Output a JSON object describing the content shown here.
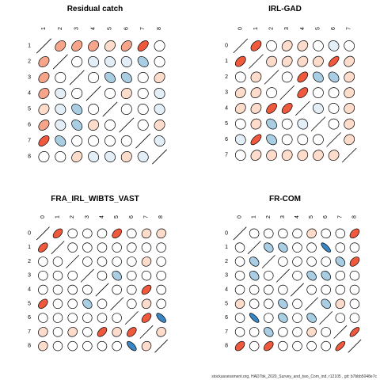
{
  "footer": "stockassessment.org, HAD7bk_2020_Survey_and_two_Com_ind, r12105 , git: b7bbb5048e7c",
  "colors": {
    "positive_strong": "#ef5a3e",
    "positive_medium": "#f6a58b",
    "positive_light": "#fddccb",
    "negative_strong": "#3a86c4",
    "negative_medium": "#a9cde3",
    "negative_light": "#e4eef7",
    "neutral": "#ffffff",
    "outline": "#000000"
  },
  "chart_data": [
    {
      "type": "heatmap",
      "title": "Residual catch",
      "row_labels": [
        "1",
        "2",
        "3",
        "4",
        "5",
        "6",
        "7",
        "8"
      ],
      "col_labels": [
        "1",
        "2",
        "3",
        "4",
        "5",
        "6",
        "7",
        "8"
      ],
      "values": [
        [
          1,
          0.3,
          0.3,
          0.25,
          0.2,
          0.35,
          0.5,
          0.05
        ],
        [
          0.3,
          1,
          0.05,
          -0.1,
          -0.1,
          -0.1,
          -0.3,
          -0.05
        ],
        [
          0.3,
          0.05,
          1,
          0.05,
          -0.3,
          -0.3,
          0,
          0.2
        ],
        [
          0.25,
          -0.1,
          0.05,
          1,
          0,
          0.1,
          0,
          -0.1
        ],
        [
          0.2,
          -0.1,
          -0.3,
          0,
          1,
          0.05,
          -0.05,
          -0.1
        ],
        [
          0.35,
          -0.1,
          -0.3,
          0.1,
          0.05,
          1,
          0,
          0.1
        ],
        [
          0.5,
          -0.3,
          0,
          0,
          -0.05,
          0,
          1,
          -0.1
        ],
        [
          0.05,
          -0.05,
          0.2,
          -0.1,
          -0.1,
          0.1,
          -0.1,
          1
        ]
      ]
    },
    {
      "type": "heatmap",
      "title": "IRL-GAD",
      "row_labels": [
        "0",
        "1",
        "2",
        "3",
        "4",
        "5",
        "6",
        "7"
      ],
      "col_labels": [
        "0",
        "1",
        "2",
        "3",
        "4",
        "5",
        "6",
        "7"
      ],
      "values": [
        [
          1,
          0.45,
          -0.05,
          0.2,
          0.2,
          -0.05,
          -0.1,
          -0.05
        ],
        [
          0.45,
          1,
          0.1,
          0.2,
          0.2,
          0.1,
          0.65,
          0.2
        ],
        [
          -0.05,
          0.1,
          1,
          0.05,
          0.5,
          -0.3,
          -0.3,
          0.1
        ],
        [
          0.2,
          0.2,
          0.05,
          1,
          0.5,
          0,
          0,
          0.1
        ],
        [
          0.2,
          0.2,
          0.5,
          0.5,
          1,
          -0.1,
          -0.05,
          0.1
        ],
        [
          -0.05,
          0.1,
          -0.3,
          0,
          -0.1,
          1,
          0,
          0.1
        ],
        [
          -0.1,
          0.65,
          -0.3,
          0,
          -0.05,
          0,
          1,
          0.1
        ],
        [
          -0.05,
          0.2,
          0.1,
          0.1,
          0.1,
          0.1,
          0.1,
          1
        ]
      ]
    },
    {
      "type": "heatmap",
      "title": "FRA_IRL_WIBTS_VAST",
      "row_labels": [
        "0",
        "1",
        "2",
        "3",
        "4",
        "5",
        "6",
        "7",
        "8"
      ],
      "col_labels": [
        "0",
        "1",
        "2",
        "3",
        "4",
        "5",
        "6",
        "7",
        "8"
      ],
      "values": [
        [
          1,
          0.5,
          0,
          0,
          0.05,
          0.45,
          -0.05,
          0.1,
          0.1
        ],
        [
          0.5,
          1,
          0,
          -0.05,
          0,
          0,
          0.05,
          0,
          0
        ],
        [
          0,
          0,
          1,
          0,
          -0.05,
          0,
          0,
          0.1,
          0
        ],
        [
          0,
          -0.05,
          0,
          1,
          -0.05,
          -0.3,
          0,
          -0.05,
          0
        ],
        [
          0.05,
          0,
          -0.05,
          -0.05,
          1,
          0,
          0,
          0.5,
          -0.05
        ],
        [
          0.45,
          0,
          0,
          -0.3,
          0,
          1,
          0,
          0.1,
          0.05
        ],
        [
          -0.05,
          0.05,
          0,
          0,
          0,
          0,
          1,
          0.45,
          -0.65
        ],
        [
          0.1,
          0,
          0.1,
          -0.05,
          0.5,
          0.1,
          0.45,
          1,
          0.1
        ],
        [
          0.1,
          0,
          0,
          0,
          -0.05,
          0.05,
          -0.65,
          0.1,
          1
        ]
      ]
    },
    {
      "type": "heatmap",
      "title": "FR-COM",
      "row_labels": [
        "0",
        "1",
        "2",
        "3",
        "4",
        "5",
        "6",
        "7",
        "8"
      ],
      "col_labels": [
        "0",
        "1",
        "2",
        "3",
        "4",
        "5",
        "6",
        "7",
        "8"
      ],
      "values": [
        [
          1,
          -0.05,
          -0.05,
          -0.05,
          0.05,
          0.1,
          -0.05,
          -0.05,
          0.45
        ],
        [
          -0.05,
          1,
          -0.3,
          -0.3,
          0,
          -0.05,
          -0.75,
          0,
          0
        ],
        [
          -0.05,
          -0.3,
          1,
          0,
          0.05,
          -0.05,
          0,
          -0.3,
          0.45
        ],
        [
          -0.05,
          -0.3,
          0,
          1,
          0,
          -0.3,
          -0.3,
          0.05,
          -0.05
        ],
        [
          0.05,
          0,
          0.05,
          0,
          1,
          0,
          0,
          0.05,
          0
        ],
        [
          0.1,
          -0.05,
          -0.05,
          -0.3,
          0,
          1,
          -0.3,
          0.1,
          -0.05
        ],
        [
          -0.05,
          -0.75,
          0,
          -0.3,
          0,
          -0.3,
          1,
          0,
          0
        ],
        [
          -0.05,
          0,
          -0.3,
          0.05,
          0.05,
          0.1,
          0,
          1,
          0.7
        ],
        [
          0.45,
          0,
          0.45,
          -0.05,
          0,
          -0.05,
          0,
          0.7,
          1
        ]
      ]
    }
  ]
}
